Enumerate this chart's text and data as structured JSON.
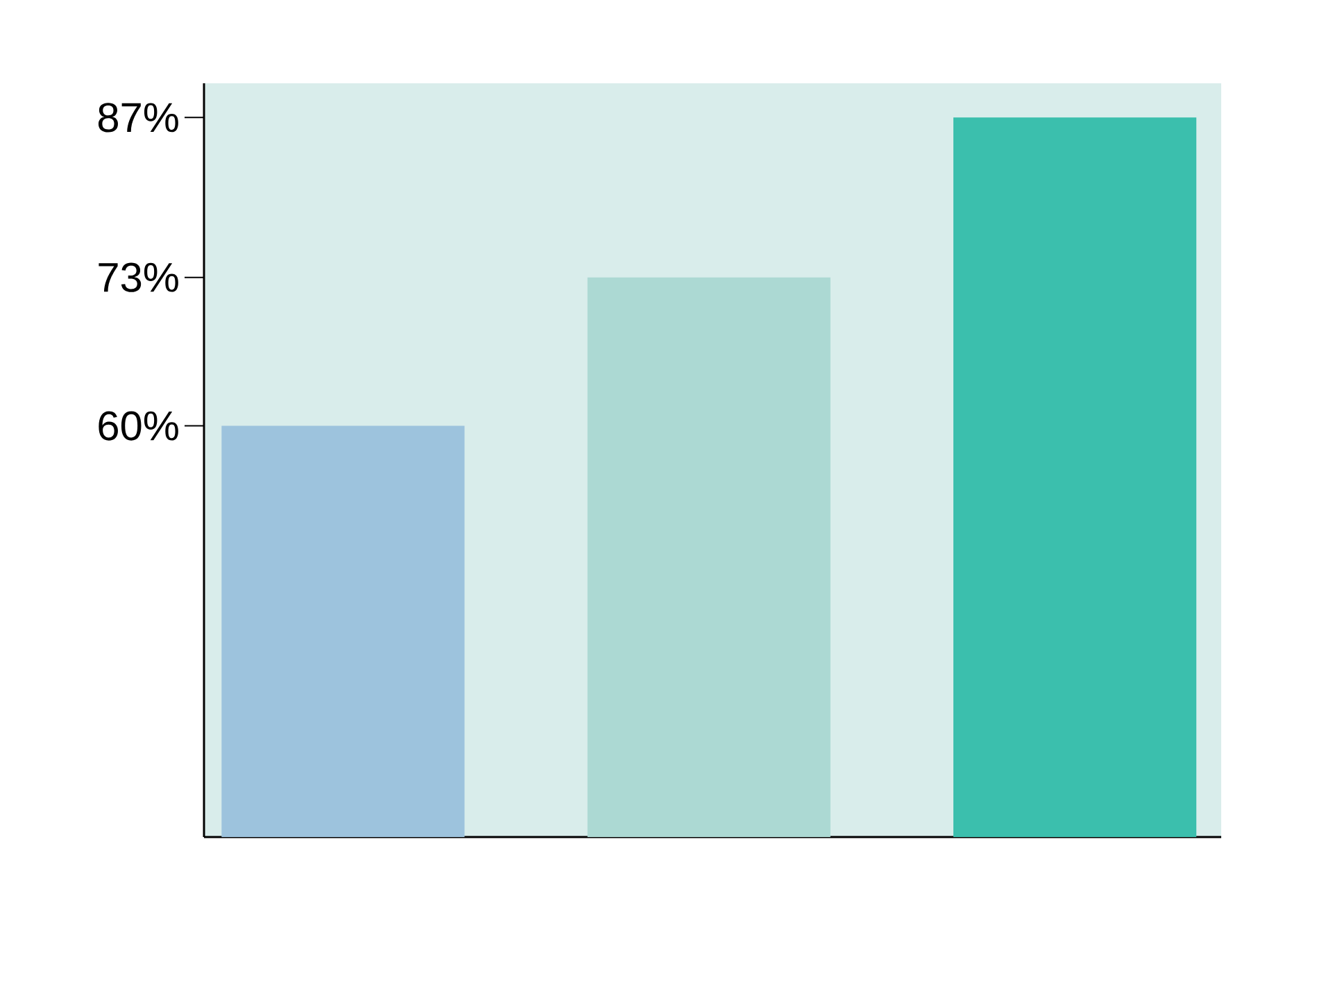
{
  "chart_data": {
    "type": "bar",
    "categories": [
      null,
      null,
      null
    ],
    "values": [
      60,
      73,
      87
    ],
    "colors": [
      "#9dc3dd",
      "#acd9d3",
      "#3bbfad"
    ],
    "ylim": [
      24,
      90
    ],
    "yticks": [
      {
        "value": 60,
        "label": "60%"
      },
      {
        "value": 73,
        "label": "73%"
      },
      {
        "value": 87,
        "label": "87%"
      }
    ]
  }
}
